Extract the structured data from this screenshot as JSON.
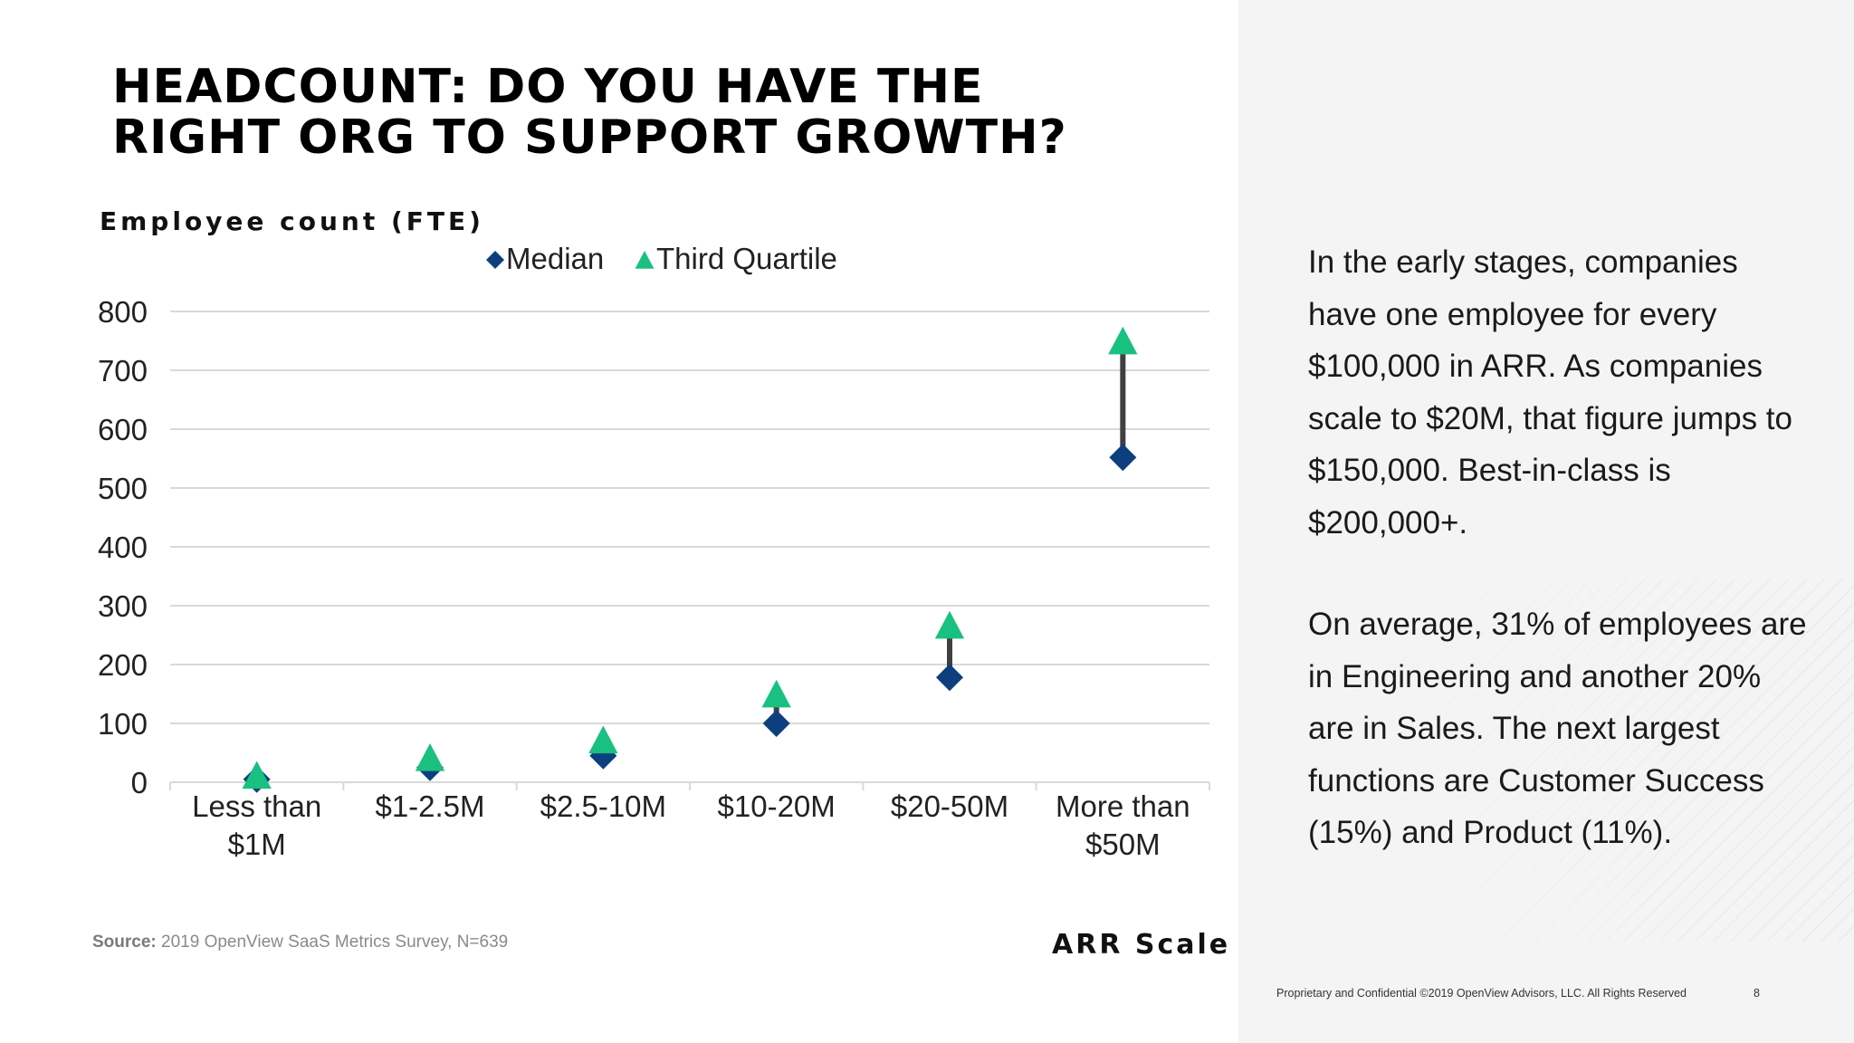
{
  "title": "HEADCOUNT: DO YOU HAVE THE RIGHT ORG TO SUPPORT GROWTH?",
  "source_label": "Source:",
  "source_text": "2019 OpenView SaaS Metrics Survey, N=639",
  "side_text": {
    "paragraph1": "In the early stages, companies have one employee for every $100,000 in ARR. As companies scale to $20M, that figure jumps to $150,000. Best-in-class is $200,000+.",
    "paragraph2": "On average, 31% of employees are in Engineering and another 20% are in Sales. The next largest functions are Customer Success (15%) and Product (11%)."
  },
  "footer": {
    "confidential": "Proprietary and Confidential ©2019 OpenView Advisors, LLC. All Rights Reserved",
    "page_number": "8"
  },
  "colors": {
    "median": "#0d3f7e",
    "third_quartile": "#1ac07f",
    "connector": "#404040",
    "gridline": "#d9d9d9"
  },
  "chart_data": {
    "type": "scatter",
    "title": "",
    "ylabel": "Employee count (FTE)",
    "xlabel": "ARR Scale",
    "categories": [
      [
        "Less than",
        "$1M"
      ],
      [
        "$1-2.5M"
      ],
      [
        "$2.5-10M"
      ],
      [
        "$10-20M"
      ],
      [
        "$20-50M"
      ],
      [
        "More than",
        "$50M"
      ]
    ],
    "series": [
      {
        "name": "Median",
        "marker": "diamond",
        "values": [
          5,
          25,
          45,
          100,
          178,
          552
        ]
      },
      {
        "name": "Third Quartile",
        "marker": "triangle",
        "values": [
          10,
          40,
          70,
          148,
          265,
          748
        ]
      }
    ],
    "ylim": [
      0,
      800
    ],
    "yticks": [
      0,
      100,
      200,
      300,
      400,
      500,
      600,
      700,
      800
    ],
    "grid": true,
    "legend_position": "top"
  }
}
